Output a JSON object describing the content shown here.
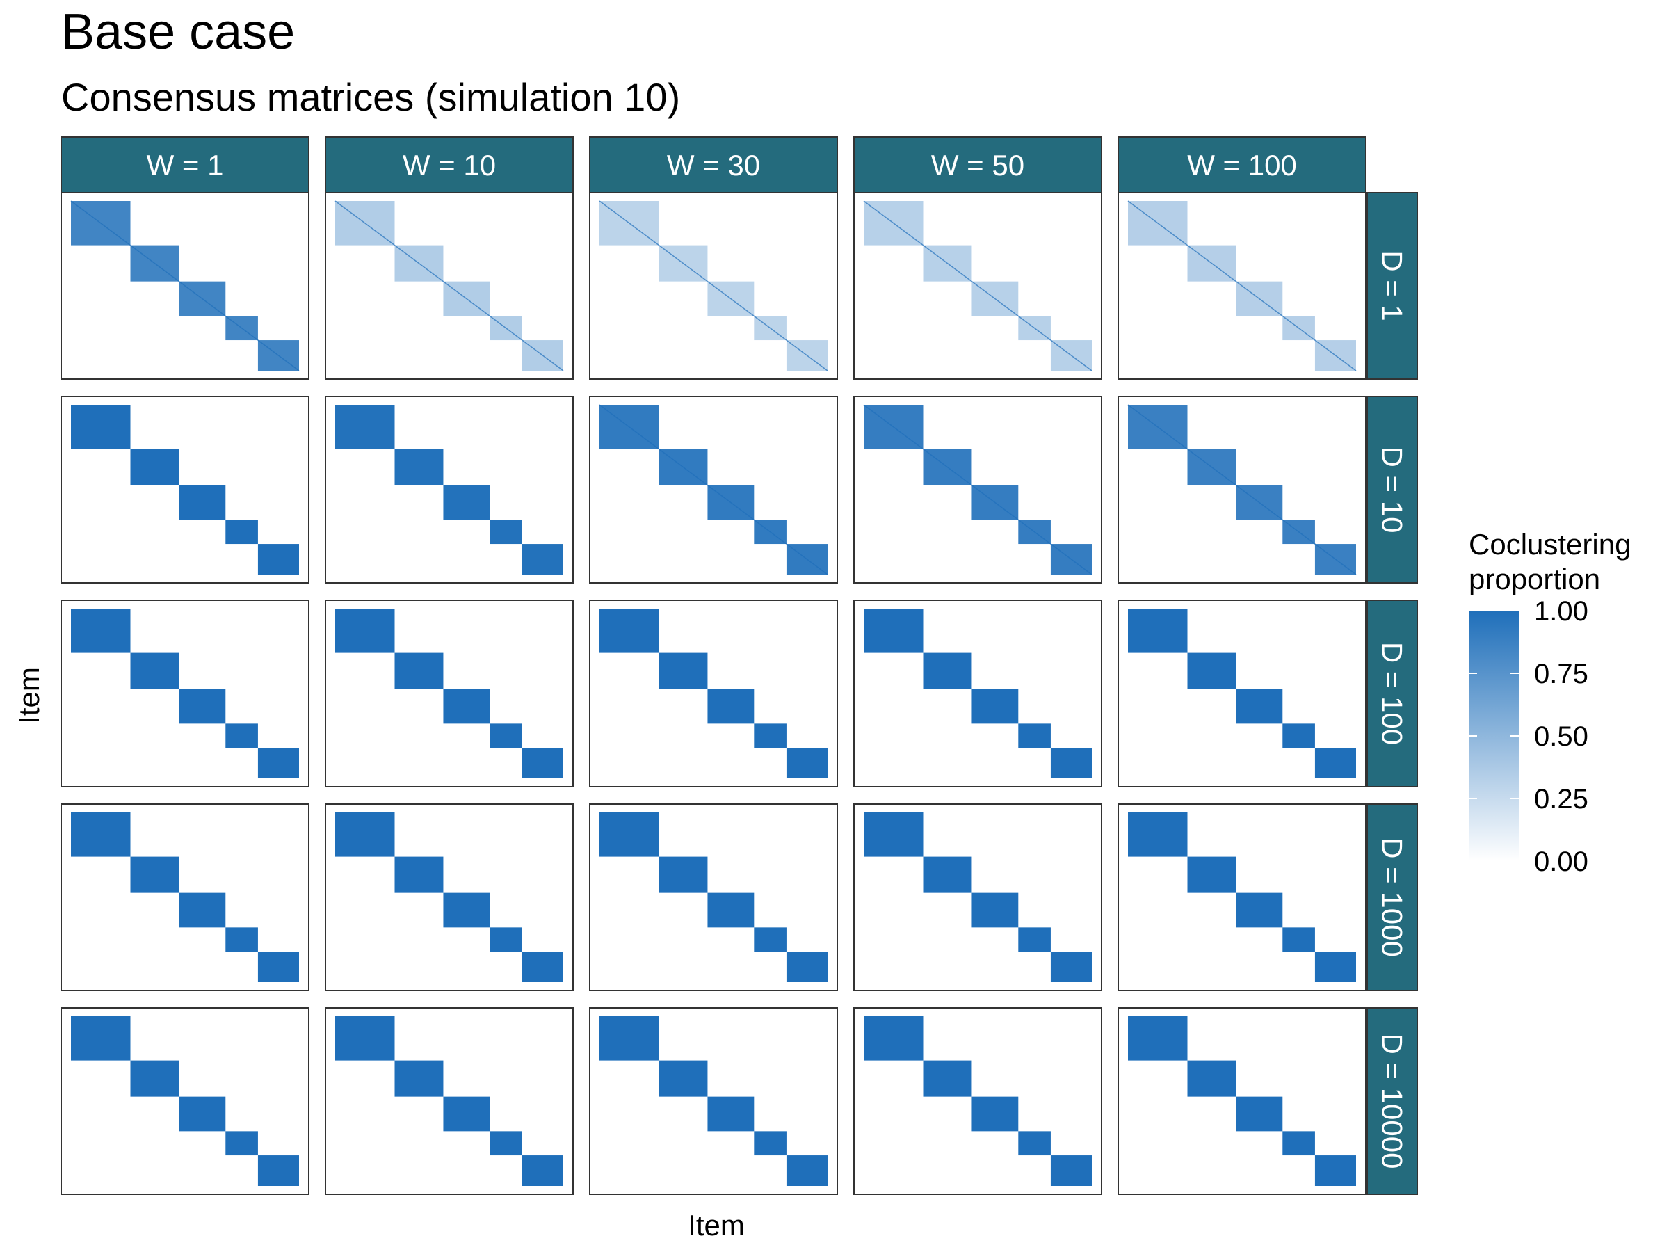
{
  "title": "Base case",
  "subtitle": "Consensus matrices (simulation 10)",
  "chart_data": {
    "type": "heatmap",
    "facet_columns": [
      "W = 1",
      "W = 10",
      "W = 30",
      "W = 50",
      "W = 100"
    ],
    "facet_rows": [
      "D = 1",
      "D = 10",
      "D = 100",
      "D = 1000",
      "D = 10000"
    ],
    "xlabel": "Item",
    "ylabel": "Item",
    "cluster_sizes": [
      55,
      45,
      43,
      30,
      38
    ],
    "legend": {
      "title_lines": [
        "Coclustering",
        "proportion"
      ],
      "ticks": [
        "1.00",
        "0.75",
        "0.50",
        "0.25",
        "0.00"
      ],
      "range": [
        0,
        1
      ],
      "low_color": "#ffffff",
      "high_color": "#1f6fba",
      "position": "right"
    },
    "block_intensity": [
      [
        0.85,
        0.35,
        0.3,
        0.32,
        0.33
      ],
      [
        1.0,
        0.98,
        0.92,
        0.9,
        0.88
      ],
      [
        1.0,
        1.0,
        1.0,
        1.0,
        1.0
      ],
      [
        1.0,
        1.0,
        1.0,
        1.0,
        1.0
      ],
      [
        1.0,
        1.0,
        1.0,
        1.0,
        1.0
      ]
    ]
  },
  "colors": {
    "strip_fill": "#246b7d",
    "strip_text": "#ffffff",
    "panel_border": "#333333",
    "diagonal": "#1f6fba"
  }
}
